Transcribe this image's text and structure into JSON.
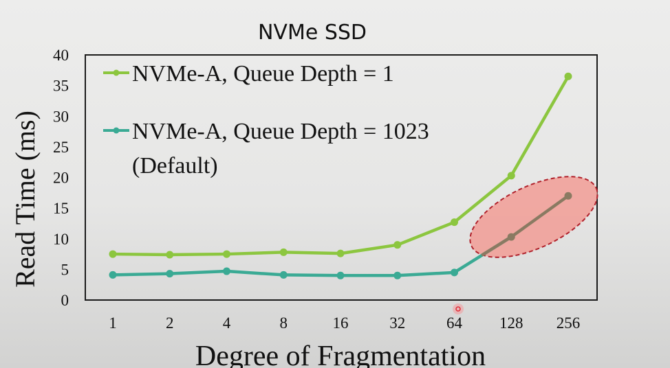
{
  "chart_data": {
    "type": "line",
    "title": "NVMe SSD",
    "xlabel": "Degree of Fragmentation",
    "ylabel": "Read Time (ms)",
    "categories": [
      "1",
      "2",
      "4",
      "8",
      "16",
      "32",
      "64",
      "128",
      "256"
    ],
    "ylim": [
      0,
      40
    ],
    "yticks": [
      "0",
      "5",
      "10",
      "15",
      "20",
      "25",
      "30",
      "35",
      "40"
    ],
    "grid": false,
    "legend_position": "upper-left-inside",
    "series": [
      {
        "name": "NVMe-A, Queue Depth = 1",
        "color": "#8cc63f",
        "values": [
          7.5,
          7.4,
          7.5,
          7.8,
          7.6,
          9.0,
          12.7,
          20.3,
          36.5
        ]
      },
      {
        "name": "NVMe-A, Queue Depth = 1023 (Default)",
        "color": "#3aaa94",
        "values": [
          4.1,
          4.3,
          4.7,
          4.1,
          4.0,
          4.0,
          4.5,
          10.3,
          17.0
        ]
      }
    ],
    "annotations": [
      {
        "type": "ellipse-highlight",
        "target": "NVMe-A, Queue Depth = 1023 (Default)",
        "range": [
          "128",
          "256"
        ],
        "fill": "#f19a93",
        "stroke": "#b0202a",
        "style": "dashed"
      }
    ]
  },
  "legend": {
    "items": [
      {
        "line1": "NVMe-A, Queue Depth = 1",
        "line2": "",
        "color": "#8cc63f"
      },
      {
        "line1": "NVMe-A, Queue Depth = 1023",
        "line2": "(Default)",
        "color": "#3aaa94"
      }
    ]
  },
  "colors": {
    "highlight_line": "#8a7a62",
    "axis": "#1a1a1a",
    "cursor": "#e0303a"
  }
}
